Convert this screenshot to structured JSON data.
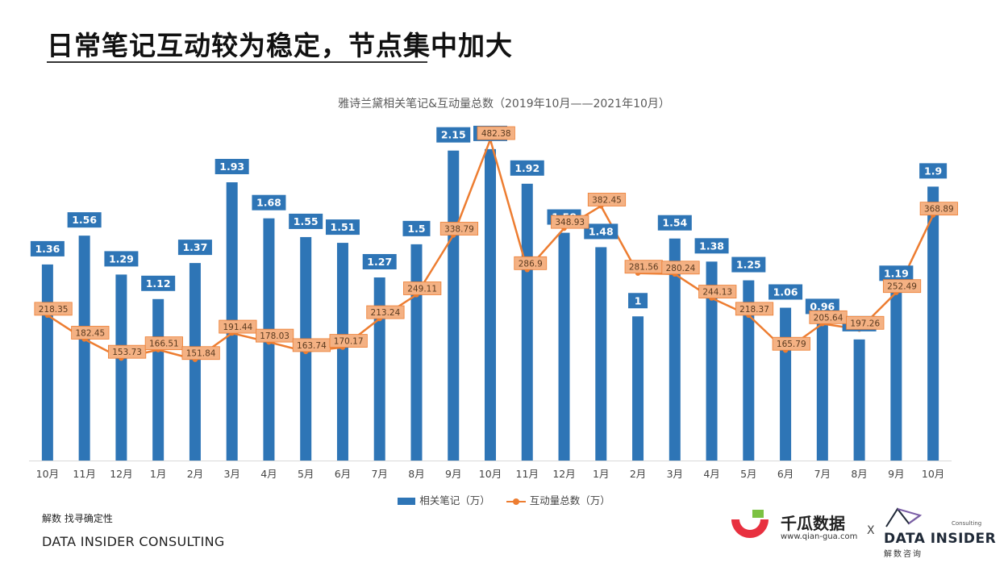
{
  "page": {
    "title": "日常笔记互动较为稳定，节点集中加大"
  },
  "chart_data": {
    "type": "bar",
    "title": "雅诗兰黛相关笔记&互动量总数（2019年10月——2021年10月）",
    "categories": [
      "10月",
      "11月",
      "12月",
      "1月",
      "2月",
      "3月",
      "4月",
      "5月",
      "6月",
      "7月",
      "8月",
      "9月",
      "10月",
      "11月",
      "12月",
      "1月",
      "2月",
      "3月",
      "4月",
      "5月",
      "6月",
      "7月",
      "8月",
      "9月",
      "10月"
    ],
    "series": [
      {
        "name": "相关笔记（万）",
        "type": "bar",
        "axis": "left",
        "color": "#2e75b6",
        "values": [
          1.36,
          1.56,
          1.29,
          1.12,
          1.37,
          1.93,
          1.68,
          1.55,
          1.51,
          1.27,
          1.5,
          2.15,
          2.16,
          1.92,
          1.58,
          1.48,
          1.0,
          1.54,
          1.38,
          1.25,
          1.06,
          0.96,
          0.84,
          1.19,
          1.9
        ]
      },
      {
        "name": "互动量总数（万）",
        "type": "line",
        "axis": "right",
        "color": "#ed7d31",
        "values": [
          218.35,
          182.45,
          153.73,
          166.51,
          151.84,
          191.44,
          178.03,
          163.74,
          170.17,
          213.24,
          249.11,
          338.79,
          482.38,
          286.9,
          348.93,
          382.45,
          281.56,
          280.24,
          244.13,
          218.37,
          165.79,
          205.64,
          197.26,
          252.49,
          368.89
        ]
      }
    ],
    "bar_labels": [
      "1.36",
      "1.56",
      "1.29",
      "1.12",
      "1.37",
      "1.93",
      "1.68",
      "1.55",
      "1.51",
      "1.27",
      "1.5",
      "2.15",
      "2.16",
      "1.92",
      "1.58",
      "1.48",
      "1",
      "1.54",
      "1.38",
      "1.25",
      "1.06",
      "0.96",
      "0.84",
      "1.19",
      "1.9"
    ],
    "line_labels": [
      "218.35",
      "182.45",
      "153.73",
      "166.51",
      "151.84",
      "191.44",
      "178.03",
      "163.74",
      "170.17",
      "213.24",
      "249.11",
      "338.79",
      "482.38",
      "286.9",
      "348.93",
      "382.45",
      "281.56",
      "280.24",
      "244.13",
      "218.37",
      "165.79",
      "205.64",
      "197.26",
      "252.49",
      "368.89"
    ],
    "ylim_left": [
      0,
      2.4
    ],
    "ylim_right": [
      0,
      520
    ],
    "grid": false,
    "legend": "bottom"
  },
  "footer": {
    "tagline": "解数 找寻确定性",
    "company": "DATA INSIDER CONSULTING"
  },
  "logos": {
    "qiangua_name": "千瓜数据",
    "qiangua_url": "www.qian-gua.com",
    "separator": "X",
    "datainsider_consulting": "Consulting",
    "datainsider_name": "DATA INSIDER",
    "datainsider_sub": "解数咨询",
    "qiangua_colors": [
      "#e8303f",
      "#7cc242"
    ],
    "datainsider_colors": [
      "#1f2937",
      "#7b5ea7"
    ]
  }
}
